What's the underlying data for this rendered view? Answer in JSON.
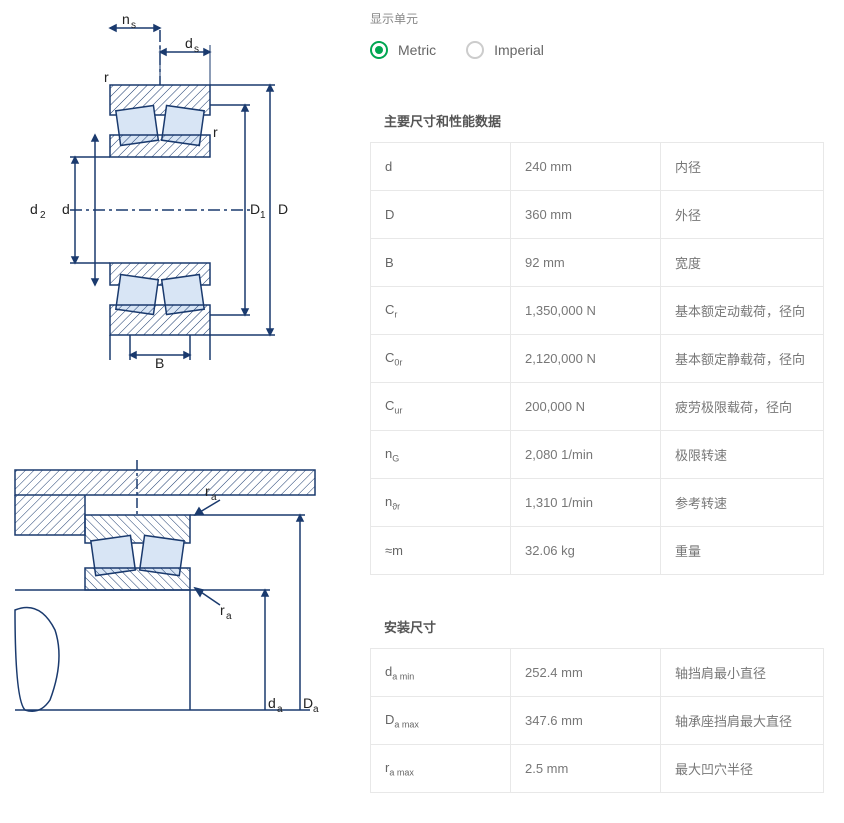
{
  "units": {
    "label": "显示单元",
    "metric": "Metric",
    "imperial": "Imperial"
  },
  "sections": {
    "main": {
      "title": "主要尺寸和性能数据",
      "rows": [
        {
          "sym": "d",
          "sub": "",
          "val": "240 mm",
          "desc": "内径"
        },
        {
          "sym": "D",
          "sub": "",
          "val": "360 mm",
          "desc": "外径"
        },
        {
          "sym": "B",
          "sub": "",
          "val": "92 mm",
          "desc": "宽度"
        },
        {
          "sym": "C",
          "sub": "r",
          "val": "1,350,000 N",
          "desc": "基本额定动载荷，径向"
        },
        {
          "sym": "C",
          "sub": "0r",
          "val": "2,120,000 N",
          "desc": "基本额定静载荷，径向"
        },
        {
          "sym": "C",
          "sub": "ur",
          "val": "200,000 N",
          "desc": "疲劳极限载荷，径向"
        },
        {
          "sym": "n",
          "sub": "G",
          "val": "2,080 1/min",
          "desc": "极限转速"
        },
        {
          "sym": "n",
          "sub": "ϑr",
          "val": "1,310 1/min",
          "desc": "参考转速"
        },
        {
          "sym": "≈m",
          "sub": "",
          "val": "32.06 kg",
          "desc": "重量"
        }
      ]
    },
    "mounting": {
      "title": "安装尺寸",
      "rows": [
        {
          "sym": "d",
          "sub": "a min",
          "val": "252.4 mm",
          "desc": "轴挡肩最小直径"
        },
        {
          "sym": "D",
          "sub": "a max",
          "val": "347.6 mm",
          "desc": "轴承座挡肩最大直径"
        },
        {
          "sym": "r",
          "sub": "a max",
          "val": "2.5 mm",
          "desc": "最大凹穴半径"
        }
      ]
    }
  },
  "diagram_colors": {
    "stroke": "#1a3a6e",
    "fill": "#d8e5f5",
    "hatch": "#1a3a6e",
    "centerline": "#1a3a6e",
    "text": "#222"
  }
}
